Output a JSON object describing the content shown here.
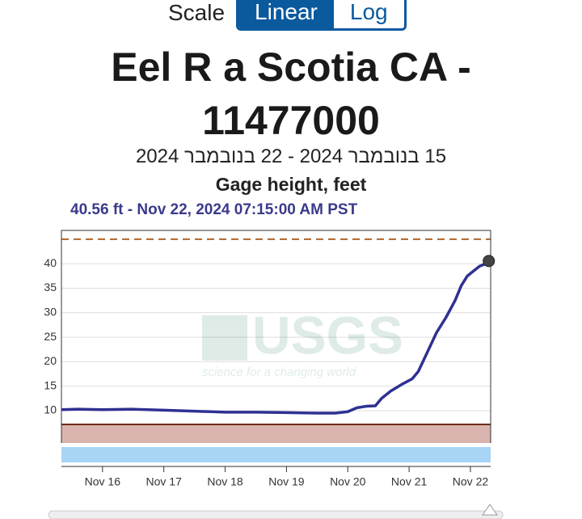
{
  "scale_toggle": {
    "label": "Scale",
    "options": [
      "Linear",
      "Log"
    ],
    "selected": 0
  },
  "chart_data": {
    "type": "line",
    "title": "Eel R a Scotia CA - 11477000",
    "subtitle": "15 בנובמבר 2024 - 22 בנובמבר 2024",
    "ylabel": "Gage height, feet",
    "annotation": "40.56 ft - Nov 22, 2024 07:15:00 AM PST",
    "watermark": {
      "logo": "USGS",
      "tagline": "science for a changing world"
    },
    "x": [
      15.33,
      15.6,
      16.0,
      16.5,
      17.0,
      17.5,
      18.0,
      18.5,
      19.0,
      19.5,
      19.8,
      20.0,
      20.15,
      20.3,
      20.45,
      20.55,
      20.7,
      20.9,
      21.05,
      21.15,
      21.3,
      21.45,
      21.6,
      21.75,
      21.85,
      21.95,
      22.05,
      22.15,
      22.25,
      22.3
    ],
    "series": [
      {
        "name": "Gage height",
        "color": "#2e3192",
        "values": [
          10.2,
          10.3,
          10.2,
          10.3,
          10.1,
          9.9,
          9.7,
          9.7,
          9.6,
          9.5,
          9.5,
          9.8,
          10.6,
          10.9,
          11.0,
          12.5,
          14.0,
          15.5,
          16.5,
          18.0,
          22.0,
          26.0,
          29.0,
          32.5,
          35.5,
          37.5,
          38.5,
          39.5,
          40.0,
          40.56
        ]
      }
    ],
    "xlim": [
      15.33,
      22.33
    ],
    "xticks": [
      {
        "value": 16,
        "label": "Nov 16"
      },
      {
        "value": 17,
        "label": "Nov 17"
      },
      {
        "value": 18,
        "label": "Nov 18"
      },
      {
        "value": 19,
        "label": "Nov 19"
      },
      {
        "value": 20,
        "label": "Nov 20"
      },
      {
        "value": 21,
        "label": "Nov 21"
      },
      {
        "value": 22,
        "label": "Nov 22"
      }
    ],
    "ylim": [
      3.4,
      46.8
    ],
    "yticks": [
      10,
      15,
      20,
      25,
      30,
      35,
      40
    ],
    "grid": true,
    "reference_lines": [
      {
        "value": 45,
        "color": "#b0652a",
        "style": "dashed"
      },
      {
        "value": 7.2,
        "color": "#6b2b1a",
        "style": "solid"
      }
    ]
  }
}
